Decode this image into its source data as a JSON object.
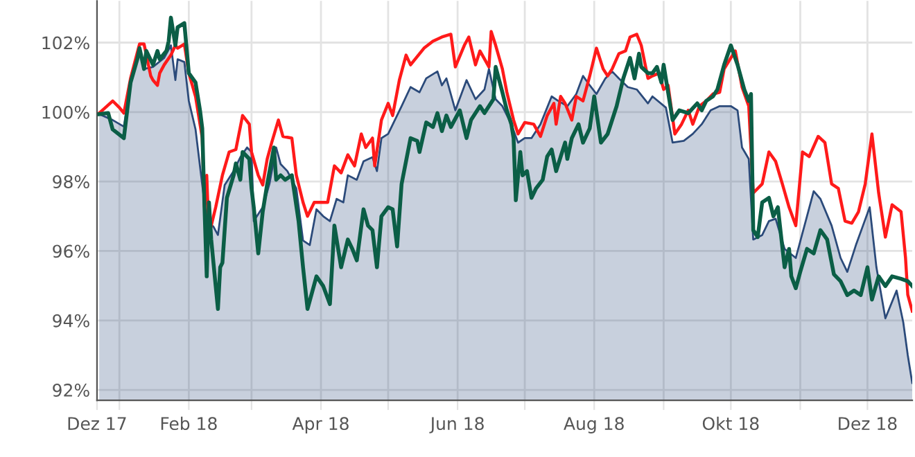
{
  "chart_data": {
    "type": "line",
    "xlim": [
      "2017-12-22",
      "2018-12-21"
    ],
    "xticks": [
      {
        "value": "2017-12-22",
        "label": "Dez 17"
      },
      {
        "value": "2018-01-01",
        "label": null
      },
      {
        "value": "2018-02-01",
        "label": "Feb 18"
      },
      {
        "value": "2018-03-01",
        "label": null
      },
      {
        "value": "2018-04-01",
        "label": "Apr 18"
      },
      {
        "value": "2018-05-01",
        "label": null
      },
      {
        "value": "2018-06-01",
        "label": "Jun 18"
      },
      {
        "value": "2018-07-01",
        "label": null
      },
      {
        "value": "2018-08-01",
        "label": "Aug 18"
      },
      {
        "value": "2018-09-01",
        "label": null
      },
      {
        "value": "2018-10-01",
        "label": "Okt 18"
      },
      {
        "value": "2018-11-01",
        "label": null
      },
      {
        "value": "2018-12-01",
        "label": "Dez 18"
      }
    ],
    "ylim": [
      91.7,
      103.2
    ],
    "yticks": [
      {
        "value": 92,
        "label": "92%"
      },
      {
        "value": 94,
        "label": "94%"
      },
      {
        "value": 96,
        "label": "96%"
      },
      {
        "value": 98,
        "label": "98%"
      },
      {
        "value": 100,
        "label": "100%"
      },
      {
        "value": 102,
        "label": "102%"
      }
    ],
    "grid": true,
    "legend": false,
    "line_style": "solid",
    "series": [
      {
        "type": "area",
        "color": "#2b4a7a",
        "x": [
          "2017-12-23",
          "2017-12-29",
          "2018-01-03",
          "2018-01-06",
          "2018-01-10",
          "2018-01-12",
          "2018-01-16",
          "2018-01-21",
          "2018-01-24",
          "2018-01-26",
          "2018-01-27",
          "2018-01-30",
          "2018-02-01",
          "2018-02-04",
          "2018-02-07",
          "2018-02-09",
          "2018-02-12",
          "2018-02-14",
          "2018-02-17",
          "2018-02-21",
          "2018-02-24",
          "2018-02-27",
          "2018-03-01",
          "2018-03-02",
          "2018-03-06",
          "2018-03-09",
          "2018-03-12",
          "2018-03-14",
          "2018-03-17",
          "2018-03-21",
          "2018-03-24",
          "2018-03-27",
          "2018-03-30",
          "2018-04-02",
          "2018-04-05",
          "2018-04-08",
          "2018-04-11",
          "2018-04-13",
          "2018-04-17",
          "2018-04-20",
          "2018-04-24",
          "2018-04-26",
          "2018-04-28",
          "2018-05-01",
          "2018-05-04",
          "2018-05-07",
          "2018-05-11",
          "2018-05-15",
          "2018-05-18",
          "2018-05-23",
          "2018-05-25",
          "2018-05-27",
          "2018-05-31",
          "2018-06-05",
          "2018-06-09",
          "2018-06-13",
          "2018-06-15",
          "2018-06-18",
          "2018-06-21",
          "2018-06-25",
          "2018-06-28",
          "2018-07-01",
          "2018-07-04",
          "2018-07-08",
          "2018-07-13",
          "2018-07-16",
          "2018-07-20",
          "2018-07-24",
          "2018-07-27",
          "2018-07-30",
          "2018-08-02",
          "2018-08-06",
          "2018-08-09",
          "2018-08-12",
          "2018-08-16",
          "2018-08-20",
          "2018-08-25",
          "2018-08-27",
          "2018-09-02",
          "2018-09-05",
          "2018-09-10",
          "2018-09-14",
          "2018-09-18",
          "2018-09-22",
          "2018-09-26",
          "2018-10-01",
          "2018-10-04",
          "2018-10-06",
          "2018-10-09",
          "2018-10-11",
          "2018-10-15",
          "2018-10-18",
          "2018-10-21",
          "2018-10-25",
          "2018-10-30",
          "2018-11-04",
          "2018-11-07",
          "2018-11-10",
          "2018-11-15",
          "2018-11-19",
          "2018-11-22",
          "2018-11-26",
          "2018-11-29",
          "2018-12-02",
          "2018-12-05",
          "2018-12-09",
          "2018-12-14",
          "2018-12-17",
          "2018-12-19",
          "2018-12-21"
        ],
        "values": [
          99.94,
          99.77,
          99.58,
          100.85,
          101.92,
          101.24,
          101.3,
          101.56,
          101.92,
          100.92,
          101.52,
          101.44,
          100.32,
          99.5,
          97.9,
          96.86,
          96.7,
          96.46,
          97.9,
          98.3,
          98.7,
          98.98,
          98.85,
          96.86,
          97.26,
          97.93,
          98.98,
          98.5,
          98.3,
          97.8,
          96.3,
          96.17,
          97.2,
          97.0,
          96.86,
          97.5,
          97.4,
          98.18,
          98.05,
          98.58,
          98.7,
          98.3,
          99.25,
          99.37,
          99.77,
          100.17,
          100.72,
          100.57,
          100.97,
          101.17,
          100.77,
          100.97,
          100.05,
          100.92,
          100.37,
          100.65,
          101.24,
          100.37,
          100.17,
          99.65,
          99.12,
          99.25,
          99.25,
          99.65,
          100.45,
          100.32,
          100.17,
          100.52,
          101.04,
          100.77,
          100.52,
          100.97,
          101.17,
          100.97,
          100.72,
          100.65,
          100.25,
          100.45,
          100.13,
          99.12,
          99.17,
          99.37,
          99.65,
          100.05,
          100.17,
          100.17,
          100.05,
          98.98,
          98.65,
          96.33,
          96.46,
          96.86,
          96.93,
          96.06,
          95.8,
          97.0,
          97.72,
          97.5,
          96.73,
          95.8,
          95.4,
          96.2,
          96.73,
          97.26,
          95.53,
          94.06,
          94.86,
          93.94,
          93.0,
          92.2
        ]
      },
      {
        "color": "#ff1a1a",
        "x": [
          "2017-12-23",
          "2017-12-29",
          "2018-01-01",
          "2018-01-03",
          "2018-01-06",
          "2018-01-10",
          "2018-01-12",
          "2018-01-15",
          "2018-01-16",
          "2018-01-18",
          "2018-01-19",
          "2018-01-21",
          "2018-01-24",
          "2018-01-26",
          "2018-01-27",
          "2018-01-30",
          "2018-02-01",
          "2018-02-04",
          "2018-02-07",
          "2018-02-08",
          "2018-02-09",
          "2018-02-10",
          "2018-02-13",
          "2018-02-16",
          "2018-02-19",
          "2018-02-22",
          "2018-02-25",
          "2018-02-28",
          "2018-03-01",
          "2018-03-04",
          "2018-03-06",
          "2018-03-08",
          "2018-03-10",
          "2018-03-13",
          "2018-03-15",
          "2018-03-19",
          "2018-03-21",
          "2018-03-24",
          "2018-03-26",
          "2018-03-29",
          "2018-04-04",
          "2018-04-07",
          "2018-04-10",
          "2018-04-13",
          "2018-04-16",
          "2018-04-19",
          "2018-04-21",
          "2018-04-24",
          "2018-04-25",
          "2018-04-28",
          "2018-05-01",
          "2018-05-03",
          "2018-05-06",
          "2018-05-09",
          "2018-05-11",
          "2018-05-17",
          "2018-05-21",
          "2018-05-25",
          "2018-05-29",
          "2018-05-31",
          "2018-06-04",
          "2018-06-06",
          "2018-06-09",
          "2018-06-11",
          "2018-06-15",
          "2018-06-16",
          "2018-06-18",
          "2018-06-21",
          "2018-06-23",
          "2018-06-26",
          "2018-06-28",
          "2018-07-01",
          "2018-07-05",
          "2018-07-08",
          "2018-07-11",
          "2018-07-14",
          "2018-07-15",
          "2018-07-17",
          "2018-07-19",
          "2018-07-22",
          "2018-07-24",
          "2018-07-27",
          "2018-07-30",
          "2018-08-02",
          "2018-08-05",
          "2018-08-07",
          "2018-08-09",
          "2018-08-12",
          "2018-08-15",
          "2018-08-17",
          "2018-08-20",
          "2018-08-22",
          "2018-08-25",
          "2018-08-27",
          "2018-08-30",
          "2018-09-01",
          "2018-09-03",
          "2018-09-06",
          "2018-09-09",
          "2018-09-12",
          "2018-09-14",
          "2018-09-17",
          "2018-09-20",
          "2018-09-23",
          "2018-09-26",
          "2018-09-28",
          "2018-10-01",
          "2018-10-03",
          "2018-10-06",
          "2018-10-09",
          "2018-10-11",
          "2018-10-15",
          "2018-10-18",
          "2018-10-21",
          "2018-10-24",
          "2018-10-27",
          "2018-10-30",
          "2018-11-02",
          "2018-11-05",
          "2018-11-09",
          "2018-11-12",
          "2018-11-15",
          "2018-11-18",
          "2018-11-21",
          "2018-11-24",
          "2018-11-27",
          "2018-11-30",
          "2018-12-03",
          "2018-12-06",
          "2018-12-09",
          "2018-12-12",
          "2018-12-16",
          "2018-12-18",
          "2018-12-19",
          "2018-12-21"
        ],
        "values": [
          99.97,
          100.32,
          100.13,
          99.97,
          100.97,
          101.96,
          101.96,
          101.04,
          100.92,
          100.77,
          101.12,
          101.36,
          101.64,
          101.92,
          101.84,
          101.96,
          101.12,
          100.45,
          99.25,
          97.26,
          98.18,
          96.46,
          97.26,
          98.18,
          98.85,
          98.92,
          99.9,
          99.65,
          98.85,
          98.18,
          97.9,
          98.65,
          99.12,
          99.77,
          99.3,
          99.25,
          98.18,
          97.4,
          97.0,
          97.4,
          97.4,
          98.45,
          98.25,
          98.77,
          98.45,
          99.37,
          98.98,
          99.25,
          98.45,
          99.77,
          100.25,
          99.9,
          100.92,
          101.64,
          101.36,
          101.84,
          102.04,
          102.16,
          102.24,
          101.3,
          101.92,
          102.16,
          101.36,
          101.76,
          101.3,
          102.32,
          101.92,
          101.24,
          100.57,
          99.77,
          99.37,
          99.7,
          99.65,
          99.3,
          99.9,
          100.25,
          99.65,
          100.45,
          100.25,
          99.77,
          100.45,
          100.32,
          101.04,
          101.84,
          101.24,
          101.04,
          101.24,
          101.68,
          101.76,
          102.16,
          102.24,
          101.92,
          100.97,
          101.04,
          101.12,
          100.65,
          100.77,
          99.37,
          99.65,
          100.05,
          99.65,
          100.17,
          100.32,
          100.52,
          100.57,
          101.24,
          101.56,
          101.76,
          100.72,
          100.17,
          97.67,
          97.93,
          98.85,
          98.58,
          97.93,
          97.26,
          96.73,
          98.85,
          98.72,
          99.3,
          99.12,
          97.93,
          97.8,
          96.86,
          96.8,
          97.13,
          97.93,
          99.37,
          97.67,
          96.4,
          97.33,
          97.13,
          95.8,
          94.74,
          94.27
        ]
      },
      {
        "color": "#0b5e46",
        "x": [
          "2017-12-23",
          "2017-12-27",
          "2017-12-29",
          "2018-01-03",
          "2018-01-06",
          "2018-01-09",
          "2018-01-10",
          "2018-01-12",
          "2018-01-13",
          "2018-01-16",
          "2018-01-18",
          "2018-01-19",
          "2018-01-22",
          "2018-01-23",
          "2018-01-24",
          "2018-01-26",
          "2018-01-27",
          "2018-01-30",
          "2018-02-01",
          "2018-02-04",
          "2018-02-06",
          "2018-02-07",
          "2018-02-08",
          "2018-02-09",
          "2018-02-10",
          "2018-02-11",
          "2018-02-13",
          "2018-02-14",
          "2018-02-15",
          "2018-02-16",
          "2018-02-18",
          "2018-02-21",
          "2018-02-22",
          "2018-02-24",
          "2018-02-25",
          "2018-02-28",
          "2018-03-01",
          "2018-03-02",
          "2018-03-04",
          "2018-03-06",
          "2018-03-08",
          "2018-03-11",
          "2018-03-12",
          "2018-03-14",
          "2018-03-16",
          "2018-03-19",
          "2018-03-22",
          "2018-03-24",
          "2018-03-26",
          "2018-03-30",
          "2018-04-02",
          "2018-04-05",
          "2018-04-07",
          "2018-04-10",
          "2018-04-13",
          "2018-04-15",
          "2018-04-17",
          "2018-04-20",
          "2018-04-22",
          "2018-04-24",
          "2018-04-26",
          "2018-04-28",
          "2018-05-01",
          "2018-05-03",
          "2018-05-05",
          "2018-05-07",
          "2018-05-11",
          "2018-05-14",
          "2018-05-15",
          "2018-05-18",
          "2018-05-21",
          "2018-05-23",
          "2018-05-25",
          "2018-05-27",
          "2018-05-29",
          "2018-06-02",
          "2018-06-05",
          "2018-06-07",
          "2018-06-11",
          "2018-06-13",
          "2018-06-17",
          "2018-06-18",
          "2018-06-21",
          "2018-06-23",
          "2018-06-25",
          "2018-06-26",
          "2018-06-27",
          "2018-06-29",
          "2018-06-30",
          "2018-07-02",
          "2018-07-04",
          "2018-07-06",
          "2018-07-09",
          "2018-07-11",
          "2018-07-13",
          "2018-07-15",
          "2018-07-19",
          "2018-07-20",
          "2018-07-22",
          "2018-07-25",
          "2018-07-27",
          "2018-07-30",
          "2018-08-01",
          "2018-08-04",
          "2018-08-07",
          "2018-08-11",
          "2018-08-14",
          "2018-08-17",
          "2018-08-19",
          "2018-08-21",
          "2018-08-22",
          "2018-08-25",
          "2018-08-27",
          "2018-08-29",
          "2018-08-31",
          "2018-09-01",
          "2018-09-05",
          "2018-09-08",
          "2018-09-12",
          "2018-09-16",
          "2018-09-18",
          "2018-09-20",
          "2018-09-23",
          "2018-09-25",
          "2018-09-28",
          "2018-10-01",
          "2018-10-04",
          "2018-10-07",
          "2018-10-09",
          "2018-10-10",
          "2018-10-11",
          "2018-10-13",
          "2018-10-15",
          "2018-10-18",
          "2018-10-20",
          "2018-10-22",
          "2018-10-25",
          "2018-10-27",
          "2018-10-28",
          "2018-10-30",
          "2018-11-01",
          "2018-11-04",
          "2018-11-07",
          "2018-11-10",
          "2018-11-13",
          "2018-11-16",
          "2018-11-19",
          "2018-11-22",
          "2018-11-25",
          "2018-11-28",
          "2018-12-01",
          "2018-12-03",
          "2018-12-06",
          "2018-12-09",
          "2018-12-12",
          "2018-12-16",
          "2018-12-19",
          "2018-12-21"
        ],
        "values": [
          99.94,
          99.97,
          99.5,
          99.25,
          100.85,
          101.52,
          101.84,
          101.24,
          101.76,
          101.36,
          101.76,
          101.52,
          101.76,
          102.04,
          102.72,
          101.92,
          102.44,
          102.56,
          101.12,
          100.85,
          100.05,
          99.53,
          97.26,
          95.27,
          97.4,
          96.33,
          94.99,
          94.33,
          95.53,
          95.66,
          97.53,
          98.18,
          98.52,
          98.05,
          98.85,
          98.65,
          97.8,
          97.26,
          95.93,
          97.13,
          97.93,
          98.98,
          98.05,
          98.18,
          98.05,
          98.18,
          96.86,
          95.53,
          94.33,
          95.27,
          94.99,
          94.47,
          96.73,
          95.53,
          96.33,
          96.06,
          95.73,
          97.2,
          96.73,
          96.6,
          95.53,
          97.0,
          97.26,
          97.2,
          96.13,
          97.93,
          99.25,
          99.17,
          98.85,
          99.7,
          99.57,
          99.97,
          99.45,
          99.9,
          99.57,
          100.05,
          99.25,
          99.77,
          100.17,
          99.97,
          100.37,
          101.3,
          100.57,
          100.05,
          99.65,
          99.25,
          97.46,
          98.85,
          98.18,
          98.3,
          97.53,
          97.8,
          98.05,
          98.72,
          98.92,
          98.3,
          99.12,
          98.65,
          99.25,
          99.65,
          99.12,
          99.53,
          100.45,
          99.12,
          99.37,
          100.17,
          100.97,
          101.56,
          100.97,
          101.68,
          101.3,
          101.12,
          101.12,
          101.3,
          100.85,
          101.36,
          99.77,
          100.05,
          99.97,
          100.25,
          100.05,
          100.32,
          100.45,
          100.65,
          101.36,
          101.92,
          101.36,
          100.65,
          100.32,
          100.52,
          96.6,
          96.4,
          97.4,
          97.53,
          97.0,
          97.26,
          95.53,
          96.06,
          95.27,
          94.93,
          95.4,
          96.06,
          95.93,
          96.6,
          96.33,
          95.33,
          95.13,
          94.73,
          94.86,
          94.73,
          95.53,
          94.6,
          95.27,
          94.99,
          95.27,
          95.2,
          95.13,
          94.99
        ]
      }
    ]
  }
}
